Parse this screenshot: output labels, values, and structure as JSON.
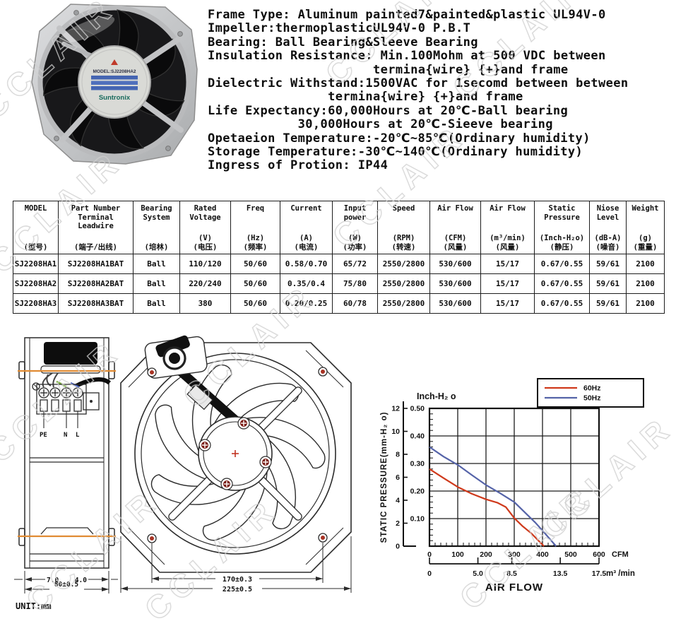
{
  "watermark": {
    "text": "CCLAIR",
    "color": "#cfcfcf"
  },
  "photo": {
    "hub": {
      "model": "MODEL:SJ2208HA2",
      "brand": "Suntronix"
    }
  },
  "specs": {
    "lines": [
      "Frame Type: Aluminum painted7&painted&plastic UL94V-0",
      "Impeller:thermoplasticUL94V-0 P.B.T",
      "Bearing: Ball Bearing&Sleeve Bearing",
      "Insulation Resistance: Min.100Mohm at 500 VDC between",
      "                      termina{wire} {+}and frame",
      "Dielectric Withstand:1500VAC for 1secomd between between",
      "                termina{wire} {+}and frame",
      "Life Expectancy:60,000Hours at 20℃-Ball bearing",
      "            30,000Hours at 20℃-Sieeve bearing",
      "Opetaeion Temperature:-20℃~85℃(Ordinary humidity)",
      "Storage Temperature:-30℃~140℃(Ordinary humidity)",
      "Ingress of Protion: IP44"
    ]
  },
  "table": {
    "columns": [
      {
        "en": [
          "MODEL"
        ],
        "unit": "",
        "cn": "(型号)"
      },
      {
        "en": [
          "Part Number",
          "Terminal",
          "Leadwire"
        ],
        "unit": "",
        "cn": "(端子/出线)"
      },
      {
        "en": [
          "Bearing",
          "System"
        ],
        "unit": "",
        "cn": "(培林)"
      },
      {
        "en": [
          "Rated",
          "Voltage"
        ],
        "unit": "(V)",
        "cn": "(电压)"
      },
      {
        "en": [
          "Freq"
        ],
        "unit": "(Hz)",
        "cn": "(频率)"
      },
      {
        "en": [
          "Current"
        ],
        "unit": "(A)",
        "cn": "(电流)"
      },
      {
        "en": [
          "Input",
          "power"
        ],
        "unit": "(W)",
        "cn": "(功率)"
      },
      {
        "en": [
          "Speed"
        ],
        "unit": "(RPM)",
        "cn": "(转速)"
      },
      {
        "en": [
          "Air Flow"
        ],
        "unit": "(CFM)",
        "cn": "(风量)"
      },
      {
        "en": [
          "Air Flow"
        ],
        "unit": "(m³/min)",
        "cn": "(风量)"
      },
      {
        "en": [
          "Static",
          "Pressure"
        ],
        "unit": "(Inch-H₂o)",
        "cn": "(静压)"
      },
      {
        "en": [
          "Niose",
          "Level"
        ],
        "unit": "(dB-A)",
        "cn": "(噪音)"
      },
      {
        "en": [
          "Weight"
        ],
        "unit": "(g)",
        "cn": "(重量)"
      }
    ],
    "rows": [
      [
        "SJ2208HA1",
        "SJ2208HA1BAT",
        "Ball",
        "110/120",
        "50/60",
        "0.58/0.70",
        "65/72",
        "2550/2800",
        "530/600",
        "15/17",
        "0.67/0.55",
        "59/61",
        "2100"
      ],
      [
        "SJ2208HA2",
        "SJ2208HA2BAT",
        "Ball",
        "220/240",
        "50/60",
        "0.35/0.4",
        "75/80",
        "2550/2800",
        "530/600",
        "15/17",
        "0.67/0.55",
        "59/61",
        "2100"
      ],
      [
        "SJ2208HA3",
        "SJ2208HA3BAT",
        "Ball",
        "380",
        "50/60",
        "0.20/0.25",
        "60/78",
        "2550/2800",
        "530/600",
        "15/17",
        "0.67/0.55",
        "59/61",
        "2100"
      ]
    ]
  },
  "drawings": {
    "side": {
      "terminal_labels": [
        "PE",
        "N",
        "L"
      ],
      "dim_left": "7.0",
      "dim_right": "4.0",
      "dim_width": "80±0.5",
      "unit_label": "UNIT:mm"
    },
    "front": {
      "dim_holes": "170±0.3",
      "dim_frame": "225±0.5"
    }
  },
  "chart_data": {
    "type": "line",
    "title": "Inch-H₂ o",
    "xlabel": "AIR FLOW",
    "ylabel": "STATIC PRESSURE(mm-H₂ o)",
    "grid": true,
    "legend_position": "top-right",
    "xlim": [
      0,
      600
    ],
    "ylim": [
      0,
      0.5
    ],
    "x_axis_primary": {
      "unit": "CFM",
      "ticks": [
        0,
        100,
        200,
        300,
        400,
        500,
        600
      ],
      "minor_step": 20
    },
    "x_axis_secondary": {
      "unit": "m³ /min",
      "tick_labels": [
        "0",
        "5.0",
        "8.5",
        "13.5",
        "17.5"
      ],
      "tick_values": [
        0,
        5.0,
        8.5,
        13.5,
        17.5
      ],
      "max": 17.5
    },
    "y_axis_inch": {
      "ticks": [
        0.1,
        0.2,
        0.3,
        0.4,
        0.5
      ],
      "minor_step": 0.02
    },
    "y_axis_mm": {
      "ticks": [
        0,
        2,
        4,
        6,
        8,
        10,
        12
      ],
      "max": 12
    },
    "series": [
      {
        "name": "60Hz",
        "color": "#cf3a1c",
        "points_cfm_inch": [
          [
            0,
            0.28
          ],
          [
            50,
            0.247
          ],
          [
            100,
            0.215
          ],
          [
            150,
            0.19
          ],
          [
            200,
            0.17
          ],
          [
            240,
            0.158
          ],
          [
            270,
            0.142
          ],
          [
            300,
            0.102
          ],
          [
            330,
            0.072
          ],
          [
            360,
            0.047
          ],
          [
            405,
            0
          ]
        ]
      },
      {
        "name": "50Hz",
        "color": "#5563a8",
        "points_cfm_inch": [
          [
            0,
            0.36
          ],
          [
            50,
            0.325
          ],
          [
            100,
            0.295
          ],
          [
            150,
            0.258
          ],
          [
            200,
            0.222
          ],
          [
            250,
            0.192
          ],
          [
            300,
            0.16
          ],
          [
            340,
            0.12
          ],
          [
            375,
            0.085
          ],
          [
            410,
            0.045
          ],
          [
            448,
            0
          ]
        ]
      }
    ]
  }
}
